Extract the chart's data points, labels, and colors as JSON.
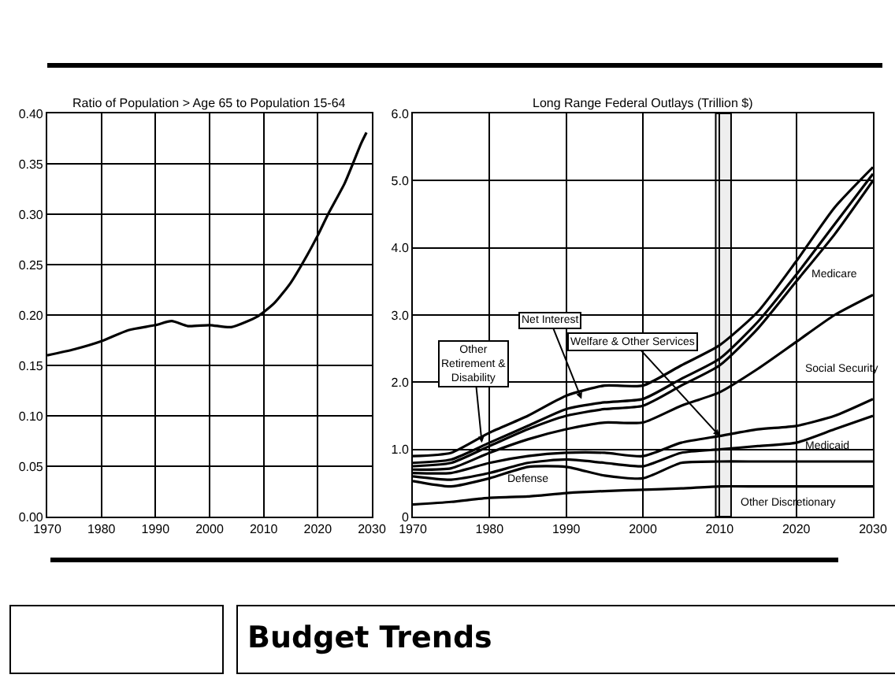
{
  "chart_data": [
    {
      "type": "line",
      "title": "Ratio of Population > Age 65 to Population 15-64",
      "x": [
        1970,
        1975,
        1980,
        1985,
        1990,
        1993,
        1996,
        2000,
        2004,
        2009,
        2012,
        2015,
        2018,
        2020,
        2022,
        2025,
        2028,
        2029
      ],
      "series": [
        {
          "color": "#000000",
          "values": [
            0.16,
            0.166,
            0.174,
            0.185,
            0.19,
            0.194,
            0.189,
            0.19,
            0.188,
            0.199,
            0.212,
            0.232,
            0.259,
            0.279,
            0.301,
            0.331,
            0.37,
            0.381
          ]
        }
      ],
      "xlim": [
        1970,
        2030
      ],
      "xticks": [
        1970,
        1980,
        1990,
        2000,
        2010,
        2020,
        2030
      ],
      "ylim": [
        0,
        0.4
      ],
      "yticks": [
        {
          "value": 0,
          "label": "0.00"
        },
        {
          "value": 0.05,
          "label": "0.05"
        },
        {
          "value": 0.1,
          "label": "0.10"
        },
        {
          "value": 0.15,
          "label": "0.15"
        },
        {
          "value": 0.2,
          "label": "0.20"
        },
        {
          "value": 0.25,
          "label": "0.25"
        },
        {
          "value": 0.3,
          "label": "0.30"
        },
        {
          "value": 0.35,
          "label": "0.35"
        },
        {
          "value": 0.4,
          "label": "0.40"
        }
      ],
      "grid": true,
      "annotations": [
        "Budget Trends"
      ]
    },
    {
      "type": "line",
      "title": "Long Range Federal Outlays (Trillion $)",
      "x": [
        1970,
        1975,
        1980,
        1985,
        1990,
        1995,
        2000,
        2005,
        2010,
        2015,
        2020,
        2025,
        2030
      ],
      "series": [
        {
          "color": "#000000",
          "values": [
            0.18,
            0.22,
            0.28,
            0.3,
            0.35,
            0.38,
            0.4,
            0.42,
            0.45,
            0.45,
            0.45,
            0.45,
            0.45
          ]
        },
        {
          "color": "#000000",
          "values": [
            0.53,
            0.45,
            0.57,
            0.74,
            0.74,
            0.61,
            0.57,
            0.8,
            0.82,
            0.82,
            0.82,
            0.82,
            0.82
          ]
        },
        {
          "color": "#000000",
          "values": [
            0.6,
            0.55,
            0.65,
            0.8,
            0.85,
            0.8,
            0.75,
            0.95,
            1.0,
            1.05,
            1.1,
            1.3,
            1.5
          ]
        },
        {
          "color": "#000000",
          "values": [
            0.65,
            0.65,
            0.8,
            0.9,
            0.95,
            0.95,
            0.9,
            1.1,
            1.2,
            1.3,
            1.35,
            1.5,
            1.75
          ]
        },
        {
          "color": "#000000",
          "values": [
            0.7,
            0.72,
            0.95,
            1.15,
            1.3,
            1.4,
            1.4,
            1.65,
            1.85,
            2.2,
            2.6,
            3.0,
            3.3
          ]
        },
        {
          "color": "#000000",
          "values": [
            0.75,
            0.8,
            1.05,
            1.3,
            1.5,
            1.6,
            1.65,
            1.95,
            2.25,
            2.8,
            3.5,
            4.2,
            5.0
          ]
        },
        {
          "color": "#000000",
          "values": [
            0.8,
            0.85,
            1.1,
            1.35,
            1.6,
            1.7,
            1.75,
            2.05,
            2.35,
            2.9,
            3.6,
            4.35,
            5.1
          ]
        },
        {
          "color": "#000000",
          "values": [
            0.9,
            0.95,
            1.25,
            1.5,
            1.8,
            1.95,
            1.95,
            2.25,
            2.55,
            3.05,
            3.8,
            4.6,
            5.2
          ]
        }
      ],
      "xlim": [
        1970,
        2030
      ],
      "xticks": [
        1970,
        1980,
        1990,
        2000,
        2010,
        2020,
        2030
      ],
      "ylim": [
        0,
        6
      ],
      "yticks": [
        0,
        {
          "value": 1,
          "label": "1.0"
        },
        {
          "value": 2,
          "label": "2.0"
        },
        {
          "value": 3,
          "label": "3.0"
        },
        {
          "value": 4,
          "label": "4.0"
        },
        {
          "value": 5,
          "label": "5.0"
        },
        {
          "value": 6,
          "label": "6.0"
        }
      ],
      "grid": true,
      "bands": [
        {
          "axis": "x",
          "from": 2009.5,
          "to": 2011.5,
          "color": "#eeeeee"
        }
      ],
      "annotations": [
        {
          "text": "Net Interest",
          "x": 1992,
          "y": 1.75
        },
        {
          "text": "Other\nRetirement &\nDisability",
          "x": 1979,
          "y": 1.1
        },
        {
          "text": "Welfare & Other Services",
          "x": 2010,
          "y": 1.2
        },
        "Medicare",
        "Social Security",
        "Medicaid",
        "Defense",
        "Other Discretionary"
      ]
    }
  ]
}
